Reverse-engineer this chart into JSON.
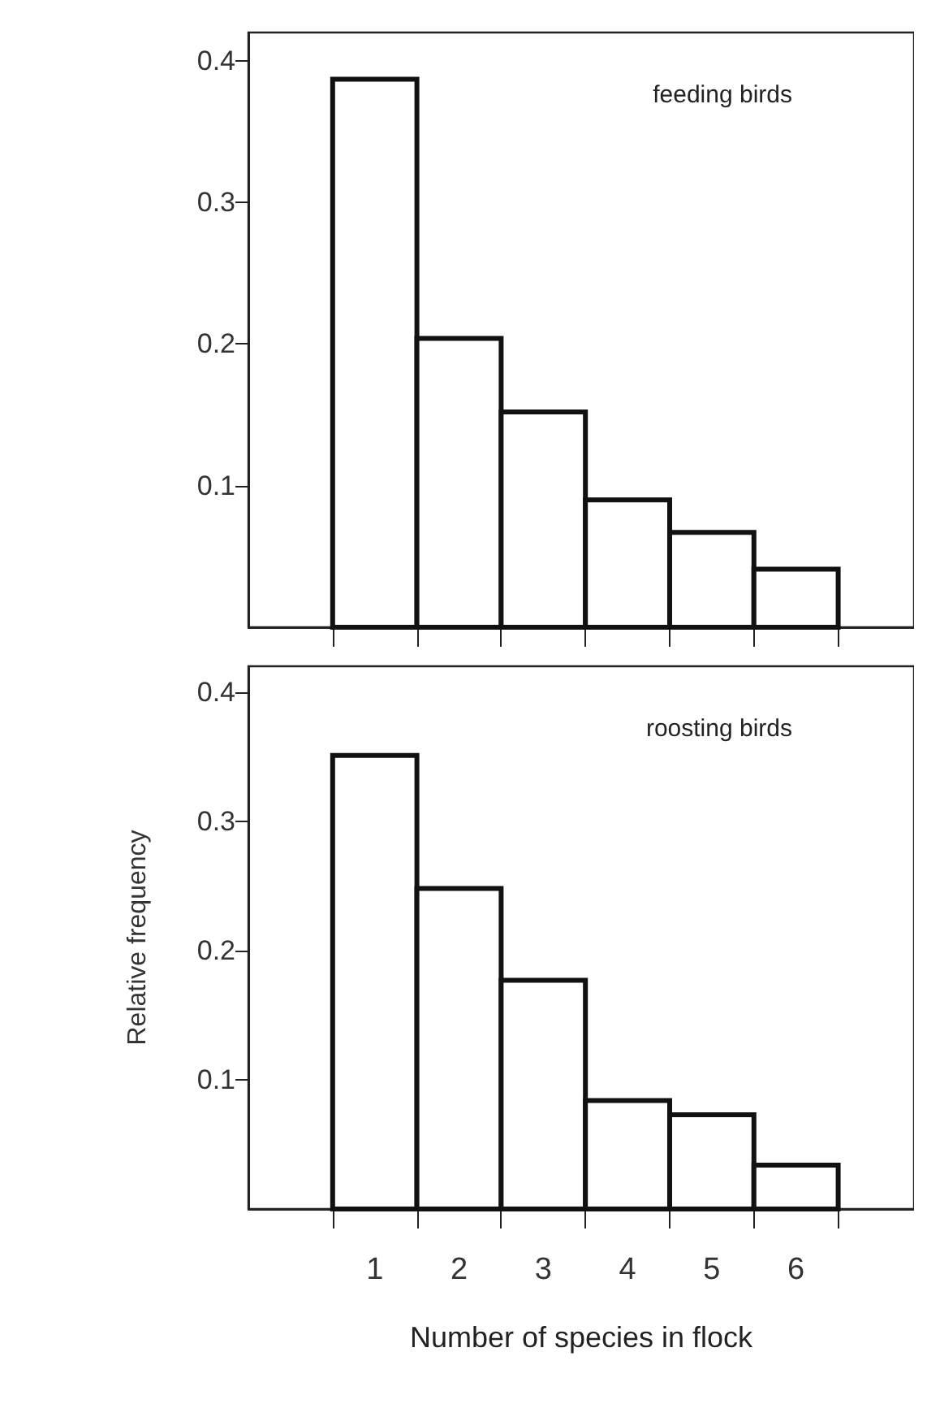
{
  "chart_data": [
    {
      "type": "histogram",
      "title": "feeding birds",
      "bins": [
        0.5,
        1.5,
        2.5,
        3.5,
        4.5,
        5.5,
        6.5
      ],
      "values": [
        0.387,
        0.204,
        0.152,
        0.09,
        0.067,
        0.041
      ],
      "color": "#ffffff",
      "xlim": [
        -0.5,
        7.4
      ],
      "ylim": [
        0,
        0.42
      ],
      "yticks": [
        0.1,
        0.2,
        0.3,
        0.4
      ],
      "xticks": [
        {
          "value": 0.5,
          "label": null
        },
        {
          "value": 1.5,
          "label": null
        },
        {
          "value": 2.5,
          "label": null
        },
        {
          "value": 3.5,
          "label": null
        },
        {
          "value": 4.5,
          "label": null
        },
        {
          "value": 5.5,
          "label": null
        },
        {
          "value": 6.5,
          "label": null
        }
      ],
      "tick_labels": "y",
      "grid": false
    },
    {
      "type": "histogram",
      "title": "roosting birds",
      "xlabel": "Number of species in flock",
      "ylabel": "Relative frequency",
      "bins": [
        0.5,
        1.5,
        2.5,
        3.5,
        4.5,
        5.5,
        6.5
      ],
      "values": [
        0.351,
        0.248,
        0.177,
        0.084,
        0.073,
        0.034
      ],
      "color": "#ffffff",
      "xlim": [
        -0.5,
        7.4
      ],
      "ylim": [
        0,
        0.42
      ],
      "yticks": [
        0.1,
        0.2,
        0.3,
        0.4
      ],
      "xticks": [
        {
          "value": 0.5,
          "label": null
        },
        {
          "value": 1.5,
          "label": null
        },
        {
          "value": 2.5,
          "label": null
        },
        {
          "value": 3.5,
          "label": null
        },
        {
          "value": 4.5,
          "label": null
        },
        {
          "value": 5.5,
          "label": null
        },
        {
          "value": 6.5,
          "label": null
        },
        1,
        2,
        3,
        4,
        5,
        6
      ],
      "grid": false
    }
  ]
}
